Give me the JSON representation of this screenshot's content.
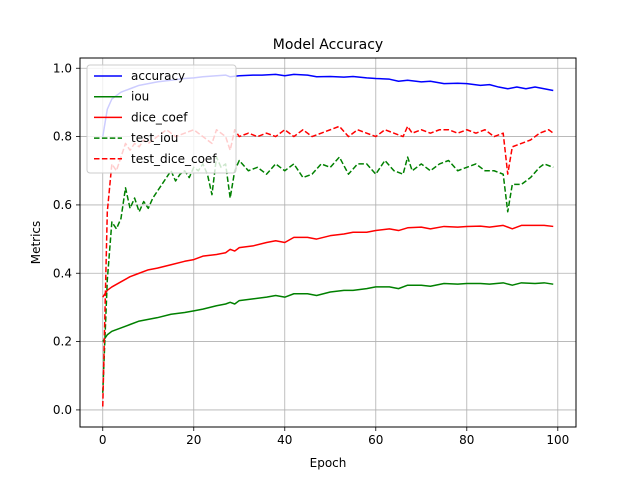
{
  "chart_data": {
    "type": "line",
    "title": "Model Accuracy",
    "xlabel": "Epoch",
    "ylabel": "Metrics",
    "xlim": [
      -5,
      104
    ],
    "ylim": [
      -0.05,
      1.03
    ],
    "xticks": [
      0,
      20,
      40,
      60,
      80,
      100
    ],
    "yticks": [
      0.0,
      0.2,
      0.4,
      0.6,
      0.8,
      1.0
    ],
    "xtick_labels": [
      "0",
      "20",
      "40",
      "60",
      "80",
      "100"
    ],
    "ytick_labels": [
      "0.0",
      "0.2",
      "0.4",
      "0.6",
      "0.8",
      "1.0"
    ],
    "grid": true,
    "legend_position": "top-left",
    "series": [
      {
        "name": "accuracy",
        "color": "#0000ff",
        "dash": "solid",
        "points": [
          [
            0,
            0.8
          ],
          [
            1,
            0.88
          ],
          [
            2,
            0.91
          ],
          [
            3,
            0.92
          ],
          [
            4,
            0.93
          ],
          [
            5,
            0.935
          ],
          [
            6,
            0.94
          ],
          [
            8,
            0.95
          ],
          [
            10,
            0.955
          ],
          [
            12,
            0.96
          ],
          [
            15,
            0.965
          ],
          [
            18,
            0.97
          ],
          [
            20,
            0.972
          ],
          [
            22,
            0.975
          ],
          [
            25,
            0.978
          ],
          [
            27,
            0.98
          ],
          [
            28,
            0.975
          ],
          [
            30,
            0.978
          ],
          [
            33,
            0.98
          ],
          [
            35,
            0.98
          ],
          [
            38,
            0.982
          ],
          [
            40,
            0.978
          ],
          [
            42,
            0.982
          ],
          [
            45,
            0.98
          ],
          [
            47,
            0.975
          ],
          [
            50,
            0.976
          ],
          [
            53,
            0.974
          ],
          [
            55,
            0.976
          ],
          [
            58,
            0.972
          ],
          [
            60,
            0.97
          ],
          [
            63,
            0.968
          ],
          [
            65,
            0.962
          ],
          [
            67,
            0.965
          ],
          [
            70,
            0.96
          ],
          [
            72,
            0.962
          ],
          [
            75,
            0.955
          ],
          [
            78,
            0.956
          ],
          [
            80,
            0.955
          ],
          [
            83,
            0.95
          ],
          [
            85,
            0.952
          ],
          [
            87,
            0.945
          ],
          [
            89,
            0.94
          ],
          [
            91,
            0.945
          ],
          [
            93,
            0.94
          ],
          [
            95,
            0.945
          ],
          [
            97,
            0.94
          ],
          [
            99,
            0.935
          ]
        ]
      },
      {
        "name": "iou",
        "color": "#008000",
        "dash": "solid",
        "points": [
          [
            0,
            0.2
          ],
          [
            1,
            0.22
          ],
          [
            2,
            0.23
          ],
          [
            4,
            0.24
          ],
          [
            6,
            0.25
          ],
          [
            8,
            0.26
          ],
          [
            10,
            0.265
          ],
          [
            12,
            0.27
          ],
          [
            15,
            0.28
          ],
          [
            18,
            0.285
          ],
          [
            20,
            0.29
          ],
          [
            22,
            0.295
          ],
          [
            25,
            0.305
          ],
          [
            27,
            0.31
          ],
          [
            28,
            0.315
          ],
          [
            29,
            0.31
          ],
          [
            30,
            0.32
          ],
          [
            33,
            0.325
          ],
          [
            36,
            0.33
          ],
          [
            38,
            0.335
          ],
          [
            40,
            0.33
          ],
          [
            42,
            0.34
          ],
          [
            45,
            0.34
          ],
          [
            47,
            0.335
          ],
          [
            50,
            0.345
          ],
          [
            53,
            0.35
          ],
          [
            55,
            0.35
          ],
          [
            58,
            0.355
          ],
          [
            60,
            0.36
          ],
          [
            63,
            0.36
          ],
          [
            65,
            0.355
          ],
          [
            67,
            0.365
          ],
          [
            70,
            0.365
          ],
          [
            72,
            0.362
          ],
          [
            75,
            0.37
          ],
          [
            78,
            0.368
          ],
          [
            80,
            0.37
          ],
          [
            83,
            0.37
          ],
          [
            85,
            0.368
          ],
          [
            88,
            0.372
          ],
          [
            90,
            0.365
          ],
          [
            92,
            0.372
          ],
          [
            95,
            0.37
          ],
          [
            97,
            0.372
          ],
          [
            99,
            0.368
          ]
        ]
      },
      {
        "name": "dice_coef",
        "color": "#ff0000",
        "dash": "solid",
        "points": [
          [
            0,
            0.33
          ],
          [
            1,
            0.35
          ],
          [
            2,
            0.36
          ],
          [
            4,
            0.375
          ],
          [
            6,
            0.39
          ],
          [
            8,
            0.4
          ],
          [
            10,
            0.41
          ],
          [
            12,
            0.415
          ],
          [
            15,
            0.425
          ],
          [
            18,
            0.435
          ],
          [
            20,
            0.44
          ],
          [
            22,
            0.45
          ],
          [
            25,
            0.455
          ],
          [
            27,
            0.46
          ],
          [
            28,
            0.47
          ],
          [
            29,
            0.465
          ],
          [
            30,
            0.475
          ],
          [
            33,
            0.48
          ],
          [
            36,
            0.49
          ],
          [
            38,
            0.495
          ],
          [
            40,
            0.49
          ],
          [
            42,
            0.505
          ],
          [
            45,
            0.505
          ],
          [
            47,
            0.5
          ],
          [
            50,
            0.51
          ],
          [
            53,
            0.515
          ],
          [
            55,
            0.52
          ],
          [
            58,
            0.52
          ],
          [
            60,
            0.525
          ],
          [
            63,
            0.53
          ],
          [
            65,
            0.525
          ],
          [
            67,
            0.533
          ],
          [
            70,
            0.535
          ],
          [
            72,
            0.53
          ],
          [
            75,
            0.537
          ],
          [
            78,
            0.535
          ],
          [
            80,
            0.537
          ],
          [
            83,
            0.538
          ],
          [
            85,
            0.535
          ],
          [
            88,
            0.54
          ],
          [
            90,
            0.53
          ],
          [
            92,
            0.54
          ],
          [
            95,
            0.54
          ],
          [
            97,
            0.54
          ],
          [
            99,
            0.537
          ]
        ]
      },
      {
        "name": "test_iou",
        "color": "#008000",
        "dash": "dashed",
        "points": [
          [
            0,
            0.05
          ],
          [
            1,
            0.38
          ],
          [
            2,
            0.55
          ],
          [
            3,
            0.53
          ],
          [
            4,
            0.56
          ],
          [
            5,
            0.65
          ],
          [
            6,
            0.59
          ],
          [
            7,
            0.62
          ],
          [
            8,
            0.58
          ],
          [
            9,
            0.61
          ],
          [
            10,
            0.59
          ],
          [
            11,
            0.62
          ],
          [
            12,
            0.64
          ],
          [
            13,
            0.66
          ],
          [
            14,
            0.68
          ],
          [
            15,
            0.7
          ],
          [
            16,
            0.67
          ],
          [
            17,
            0.69
          ],
          [
            18,
            0.7
          ],
          [
            19,
            0.68
          ],
          [
            20,
            0.71
          ],
          [
            21,
            0.7
          ],
          [
            22,
            0.72
          ],
          [
            23,
            0.69
          ],
          [
            24,
            0.63
          ],
          [
            25,
            0.74
          ],
          [
            26,
            0.71
          ],
          [
            27,
            0.72
          ],
          [
            28,
            0.62
          ],
          [
            29,
            0.7
          ],
          [
            30,
            0.73
          ],
          [
            32,
            0.7
          ],
          [
            34,
            0.71
          ],
          [
            36,
            0.69
          ],
          [
            38,
            0.72
          ],
          [
            40,
            0.7
          ],
          [
            42,
            0.72
          ],
          [
            44,
            0.68
          ],
          [
            46,
            0.69
          ],
          [
            48,
            0.72
          ],
          [
            50,
            0.71
          ],
          [
            52,
            0.74
          ],
          [
            54,
            0.69
          ],
          [
            56,
            0.72
          ],
          [
            58,
            0.72
          ],
          [
            60,
            0.69
          ],
          [
            62,
            0.73
          ],
          [
            64,
            0.7
          ],
          [
            66,
            0.69
          ],
          [
            67,
            0.74
          ],
          [
            68,
            0.7
          ],
          [
            70,
            0.72
          ],
          [
            72,
            0.7
          ],
          [
            74,
            0.72
          ],
          [
            76,
            0.73
          ],
          [
            78,
            0.7
          ],
          [
            80,
            0.71
          ],
          [
            82,
            0.72
          ],
          [
            84,
            0.7
          ],
          [
            86,
            0.7
          ],
          [
            88,
            0.69
          ],
          [
            89,
            0.58
          ],
          [
            90,
            0.66
          ],
          [
            92,
            0.66
          ],
          [
            94,
            0.68
          ],
          [
            96,
            0.71
          ],
          [
            97,
            0.72
          ],
          [
            99,
            0.71
          ]
        ]
      },
      {
        "name": "test_dice_coef",
        "color": "#ff0000",
        "dash": "dashed",
        "points": [
          [
            0,
            0.01
          ],
          [
            1,
            0.58
          ],
          [
            2,
            0.72
          ],
          [
            3,
            0.7
          ],
          [
            4,
            0.74
          ],
          [
            5,
            0.78
          ],
          [
            6,
            0.76
          ],
          [
            7,
            0.78
          ],
          [
            8,
            0.77
          ],
          [
            9,
            0.79
          ],
          [
            10,
            0.78
          ],
          [
            12,
            0.8
          ],
          [
            14,
            0.82
          ],
          [
            16,
            0.8
          ],
          [
            18,
            0.81
          ],
          [
            20,
            0.82
          ],
          [
            22,
            0.8
          ],
          [
            24,
            0.78
          ],
          [
            25,
            0.82
          ],
          [
            27,
            0.8
          ],
          [
            28,
            0.76
          ],
          [
            29,
            0.82
          ],
          [
            30,
            0.8
          ],
          [
            32,
            0.81
          ],
          [
            34,
            0.8
          ],
          [
            36,
            0.81
          ],
          [
            38,
            0.8
          ],
          [
            40,
            0.82
          ],
          [
            42,
            0.8
          ],
          [
            44,
            0.82
          ],
          [
            46,
            0.8
          ],
          [
            48,
            0.81
          ],
          [
            50,
            0.82
          ],
          [
            52,
            0.83
          ],
          [
            54,
            0.8
          ],
          [
            56,
            0.82
          ],
          [
            58,
            0.81
          ],
          [
            60,
            0.8
          ],
          [
            62,
            0.82
          ],
          [
            64,
            0.81
          ],
          [
            66,
            0.8
          ],
          [
            67,
            0.83
          ],
          [
            68,
            0.81
          ],
          [
            70,
            0.82
          ],
          [
            72,
            0.81
          ],
          [
            74,
            0.82
          ],
          [
            76,
            0.82
          ],
          [
            78,
            0.81
          ],
          [
            80,
            0.82
          ],
          [
            82,
            0.81
          ],
          [
            84,
            0.82
          ],
          [
            86,
            0.8
          ],
          [
            88,
            0.81
          ],
          [
            89,
            0.69
          ],
          [
            90,
            0.77
          ],
          [
            92,
            0.78
          ],
          [
            94,
            0.79
          ],
          [
            96,
            0.81
          ],
          [
            98,
            0.82
          ],
          [
            99,
            0.81
          ]
        ]
      }
    ]
  }
}
